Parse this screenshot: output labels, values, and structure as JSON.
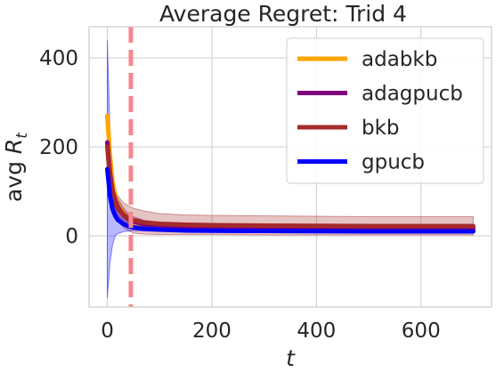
{
  "chart_data": {
    "type": "line",
    "title": "Average Regret: Trid 4",
    "xlabel": "t",
    "ylabel_prefix": "avg ",
    "ylabel_symbol": "R",
    "ylabel_sub": "t",
    "xlim": [
      -35,
      735
    ],
    "ylim": [
      -160,
      470
    ],
    "xticks": [
      0,
      200,
      400,
      600
    ],
    "yticks": [
      0,
      200,
      400
    ],
    "xtick_labels": [
      "0",
      "200",
      "400",
      "600"
    ],
    "ytick_labels": [
      "0",
      "200",
      "400"
    ],
    "grid": true,
    "legend_position": "top-right",
    "vline": {
      "x": 45,
      "color": "#f4888d",
      "style": "dashed"
    },
    "series": [
      {
        "name": "adabkb",
        "color": "#ffa500",
        "x": [
          0,
          5,
          10,
          15,
          20,
          30,
          40,
          50,
          70,
          100,
          150,
          200,
          300,
          400,
          500,
          600,
          700
        ],
        "y": [
          270,
          180,
          120,
          90,
          70,
          50,
          38,
          30,
          24,
          20,
          17,
          16,
          15,
          14.5,
          14,
          14,
          14
        ],
        "lower": [
          265,
          170,
          110,
          80,
          60,
          40,
          30,
          22,
          17,
          14,
          12,
          11,
          10,
          10,
          10,
          10,
          10
        ],
        "upper": [
          275,
          190,
          130,
          100,
          80,
          60,
          46,
          38,
          31,
          26,
          22,
          21,
          20,
          19,
          18,
          18,
          18
        ]
      },
      {
        "name": "adagpucb",
        "color": "#800080",
        "x": [
          0,
          5,
          10,
          15,
          20,
          30,
          40,
          50,
          70,
          100,
          150,
          200,
          300,
          400,
          500,
          600,
          700
        ],
        "y": [
          210,
          140,
          100,
          80,
          65,
          48,
          38,
          32,
          26,
          22,
          19,
          18,
          17,
          16.5,
          16,
          16,
          16
        ],
        "lower": [
          180,
          110,
          75,
          58,
          46,
          33,
          26,
          21,
          17,
          14,
          12,
          11,
          10,
          10,
          10,
          10,
          10
        ],
        "upper": [
          240,
          170,
          125,
          102,
          84,
          63,
          50,
          43,
          35,
          30,
          26,
          25,
          24,
          23,
          22,
          22,
          22
        ]
      },
      {
        "name": "bkb",
        "color": "#a52a2a",
        "x": [
          0,
          5,
          10,
          15,
          20,
          30,
          40,
          50,
          70,
          100,
          150,
          200,
          300,
          400,
          500,
          600,
          700
        ],
        "y": [
          200,
          130,
          95,
          75,
          62,
          48,
          40,
          35,
          30,
          27,
          25,
          24,
          23,
          22.5,
          22,
          22,
          22
        ],
        "lower": [
          160,
          90,
          60,
          45,
          35,
          20,
          12,
          6,
          4,
          3,
          3,
          3,
          2,
          2,
          2,
          2,
          2
        ],
        "upper": [
          240,
          170,
          130,
          105,
          90,
          75,
          68,
          62,
          56,
          50,
          47,
          46,
          45,
          44,
          43,
          43,
          43
        ]
      },
      {
        "name": "gpucb",
        "color": "#0000ff",
        "x": [
          0,
          5,
          10,
          15,
          20,
          30,
          40,
          50,
          70,
          100,
          150,
          200,
          300,
          400,
          500,
          600,
          700
        ],
        "y": [
          150,
          90,
          60,
          45,
          36,
          27,
          22,
          19,
          16,
          14,
          12,
          11.5,
          11,
          10.5,
          10,
          10,
          10
        ],
        "lower": [
          -140,
          -60,
          -20,
          0,
          5,
          9,
          11,
          12,
          11,
          10,
          9,
          9,
          8.5,
          8.5,
          8,
          8,
          8
        ],
        "upper": [
          440,
          240,
          140,
          90,
          67,
          45,
          33,
          26,
          21,
          18,
          15,
          14,
          13.5,
          12.5,
          12,
          12,
          12
        ]
      }
    ]
  }
}
